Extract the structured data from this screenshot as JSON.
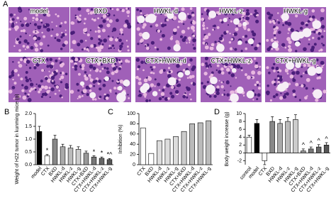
{
  "panel_a": {
    "letter": "A",
    "labels": [
      "model",
      "BXD",
      "HWKL-d",
      "HWKL-z",
      "HWKL-g",
      "CTX",
      "CTX+BXD",
      "CTX+HWKL-d",
      "CTX+HWKL-z",
      "CTX+HWKL-g"
    ]
  },
  "chart_data": [
    {
      "type": "bar",
      "letter": "B",
      "ylabel": "Weight of H22 tumor in kunming mice (g)",
      "categories": [
        "model",
        "CTX",
        "BXD",
        "HWKL-d",
        "HWKL-z",
        "HWKL-g",
        "CTX+BXD",
        "CTX+HWKL-d",
        "CTX+HWKL-z",
        "CTX+HWKL-g"
      ],
      "values": [
        1.3,
        0.35,
        1.0,
        0.7,
        0.65,
        0.6,
        0.45,
        0.3,
        0.25,
        0.2
      ],
      "errors": [
        0.2,
        0.05,
        0.15,
        0.1,
        0.1,
        0.1,
        0.08,
        0.05,
        0.05,
        0.04
      ],
      "markers": [
        null,
        "*",
        null,
        null,
        null,
        null,
        null,
        "*",
        "*",
        "*^"
      ],
      "colors": [
        "#000000",
        "#ffffff",
        "#888888",
        "#aaaaaa",
        "#bbbbbb",
        "#cccccc",
        "#999999",
        "#777777",
        "#666666",
        "#555555"
      ],
      "ylim": [
        0,
        2
      ],
      "yticks": [
        {
          "value": 0,
          "label": "0.0"
        },
        {
          "value": 0.5,
          "label": "0.5"
        },
        {
          "value": 1,
          "label": "1.0"
        },
        {
          "value": 1.5,
          "label": "1.5"
        },
        {
          "value": 2,
          "label": "2.0"
        }
      ]
    },
    {
      "type": "bar",
      "letter": "C",
      "ylabel": "Inhibition (%)",
      "categories": [
        "CTX",
        "BXD",
        "HWKL-d",
        "HWKL-z",
        "HWKL-g",
        "CTX+BXD",
        "CTX+HWKL-d",
        "CTX+HWKL-z",
        "CTX+HWKL-g"
      ],
      "values": [
        72,
        22,
        47,
        50,
        55,
        65,
        80,
        82,
        86
      ],
      "colors": [
        "#ffffff",
        "#ffffff",
        "#dddddd",
        "#dddddd",
        "#dddddd",
        "#cccccc",
        "#bbbbbb",
        "#bbbbbb",
        "#bbbbbb"
      ],
      "ylim": [
        0,
        100
      ],
      "yticks": [
        0,
        20,
        40,
        60,
        80,
        100
      ]
    },
    {
      "type": "bar",
      "letter": "D",
      "ylabel": "Body weight increase (g)",
      "categories": [
        "control",
        "model",
        "CTX",
        "BXD",
        "HWKL-d",
        "HWKL-z",
        "HWKL-g",
        "CTX+BXD",
        "CTX+HWKL-d",
        "CTX+HWKL-z",
        "CTX+HWKL-g"
      ],
      "values": [
        4,
        7.5,
        -2,
        8,
        7.5,
        8,
        8.5,
        0.5,
        1,
        1.5,
        2
      ],
      "errors": [
        0.5,
        1,
        1,
        1.2,
        1,
        1,
        1.2,
        0.5,
        0.5,
        0.6,
        0.6
      ],
      "markers": [
        null,
        null,
        null,
        null,
        null,
        null,
        null,
        "^",
        "^",
        "^",
        "^"
      ],
      "colors": [
        "#ffffff",
        "#000000",
        "#ffffff",
        "#888888",
        "#aaaaaa",
        "#bbbbbb",
        "#cccccc",
        "#999999",
        "#777777",
        "#666666",
        "#555555"
      ],
      "ylim": [
        -3,
        10
      ],
      "yticks": [
        -2,
        0,
        2,
        4,
        6,
        8,
        10
      ]
    }
  ]
}
